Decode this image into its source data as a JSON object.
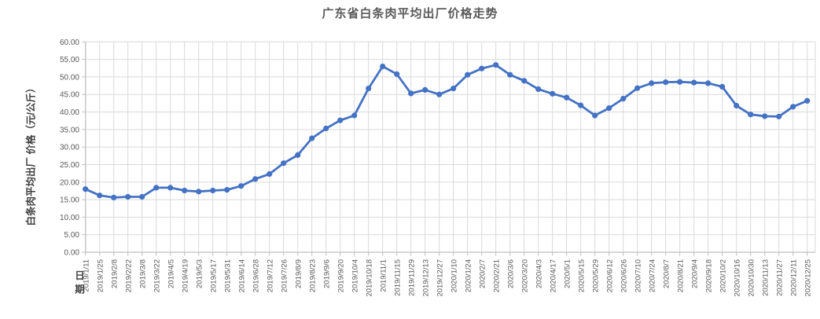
{
  "chart_data": {
    "type": "line",
    "title": "广东省白条肉平均出厂价格走势",
    "y_axis_title": "白条肉平均出厂 价格（元/公斤）",
    "x_axis_title": "日期",
    "ylim": [
      0,
      60
    ],
    "y_tick_step": 5,
    "y_tick_labels": [
      "0.00",
      "5.00",
      "10.00",
      "15.00",
      "20.00",
      "25.00",
      "30.00",
      "35.00",
      "40.00",
      "45.00",
      "50.00",
      "55.00",
      "60.00"
    ],
    "grid": "on",
    "legend": "none",
    "categories": [
      "2019/1/11",
      "2019/1/25",
      "2019/2/8",
      "2019/2/22",
      "2019/3/8",
      "2019/3/22",
      "2019/4/5",
      "2019/4/19",
      "2019/5/3",
      "2019/5/17",
      "2019/5/31",
      "2019/6/14",
      "2019/6/28",
      "2019/7/12",
      "2019/7/26",
      "2019/8/9",
      "2019/8/23",
      "2019/9/6",
      "2019/9/20",
      "2019/10/4",
      "2019/10/18",
      "2019/11/1",
      "2019/11/15",
      "2019/11/29",
      "2019/12/13",
      "2019/12/27",
      "2020/1/10",
      "2020/1/24",
      "2020/2/7",
      "2020/2/21",
      "2020/3/6",
      "2020/3/20",
      "2020/4/3",
      "2020/4/17",
      "2020/5/1",
      "2020/5/15",
      "2020/5/29",
      "2020/6/12",
      "2020/6/26",
      "2020/7/10",
      "2020/7/24",
      "2020/8/7",
      "2020/8/21",
      "2020/9/4",
      "2020/9/18",
      "2020/10/2",
      "2020/10/16",
      "2020/10/30",
      "2020/11/13",
      "2020/11/27",
      "2020/12/11",
      "2020/12/25"
    ],
    "values": [
      18.0,
      16.2,
      15.6,
      15.8,
      15.8,
      18.4,
      18.4,
      17.6,
      17.3,
      17.6,
      17.8,
      18.9,
      20.9,
      22.3,
      25.4,
      27.7,
      32.5,
      35.3,
      37.6,
      39.0,
      46.7,
      53.0,
      50.8,
      45.3,
      46.3,
      45.0,
      46.7,
      50.6,
      52.4,
      53.4,
      50.6,
      48.9,
      46.5,
      45.2,
      44.1,
      41.9,
      39.0,
      41.1,
      43.8,
      46.8,
      48.2,
      48.5,
      48.6,
      48.4,
      48.2,
      47.2,
      41.8,
      39.3,
      38.8,
      38.7,
      41.5,
      43.2
    ],
    "colors": {
      "line": "#4472C4",
      "marker": "#4472C4",
      "grid": "#D9D9D9",
      "axis": "#BFBFBF",
      "tick_text": "#595959",
      "title_text": "#595959"
    }
  }
}
